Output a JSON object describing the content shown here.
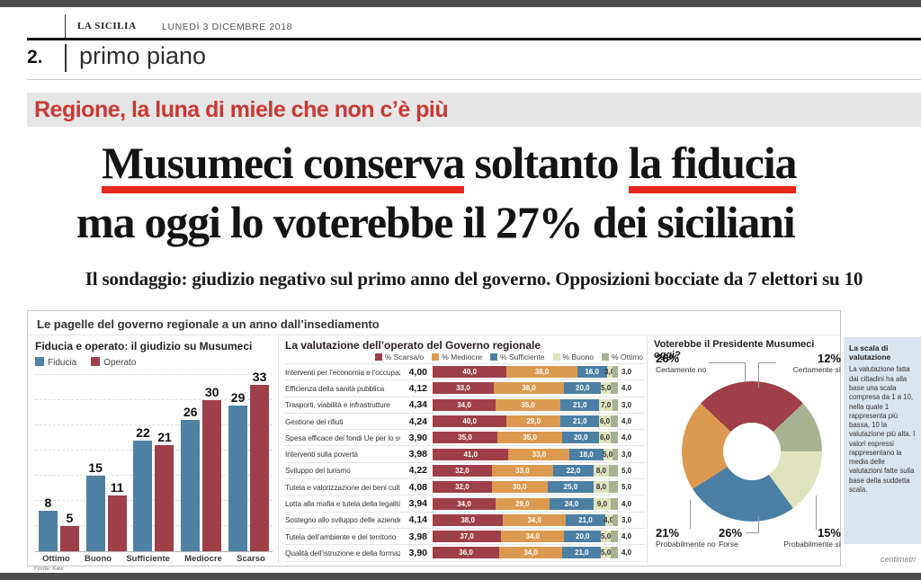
{
  "masthead": {
    "paper": "LA SICILIA",
    "date": "LUNEDÌ 3 DICEMBRE 2018",
    "page_number": "2.",
    "section": "primo piano"
  },
  "kicker": "Regione, la luna di miele che non c’è più",
  "headline": {
    "underline1": "Musumeci conserva",
    "middle": " soltanto ",
    "underline2": "la fiducia",
    "line2": "ma oggi lo voterebbe il 27% dei siciliani"
  },
  "subhead": "Il sondaggio: giudizio negativo sul primo anno del governo. Opposizioni bocciate da 7 elettori su 10",
  "infographic": {
    "box_title": "Le pagelle del governo regionale a un anno dall’insediamento",
    "source": "Fonte: Keix",
    "credit": "centimetri",
    "scale_note": {
      "title": "La scala di valutazione",
      "body": "La valutazione fatta dai cittadini ha alla base una scala compresa da 1 a 10, nella quale 1 rappresenta più bassa, 10 la valutazione più alta. I valori espressi rappresentano la media delle valutazioni fatte sulla base della suddetta scala."
    }
  },
  "colors": {
    "underline_red": "#e8261d",
    "kicker_red": "#c93834",
    "band_gray": "#e6e6e6",
    "note_blue": "#d9e5ef",
    "fiducia_blue": "#4f81a3",
    "operato_red": "#9e3f49"
  },
  "chart_data": [
    {
      "type": "bar",
      "title": "Fiducia e operato: il giudizio su Musumeci",
      "categories": [
        "Ottimo",
        "Buono",
        "Sufficiente",
        "Mediocre",
        "Scarso"
      ],
      "series": [
        {
          "name": "Fiducia",
          "color": "#4f81a3",
          "values": [
            8,
            15,
            22,
            26,
            29
          ]
        },
        {
          "name": "Operato",
          "color": "#9e3f49",
          "values": [
            5,
            11,
            21,
            30,
            33
          ]
        }
      ],
      "ylim": [
        0,
        35
      ],
      "grid": "dashed-horizontal",
      "legend_position": "top-left"
    },
    {
      "type": "bar",
      "subtype": "horizontal-stacked-100pct",
      "title": "La valutazione dell’operato del Governo regionale",
      "legend": [
        "% Scarsa/o",
        "% Mediocre",
        "% Sufficiente",
        "% Buono",
        "% Ottimo"
      ],
      "colors": [
        "#9e3f49",
        "#dc9a50",
        "#4b7fa3",
        "#dfe3bd",
        "#a7b291"
      ],
      "rows": [
        {
          "label": "Interventi per l’economia e l’occupazione",
          "mean": "4,00",
          "values": [
            40,
            38,
            16,
            3,
            3
          ]
        },
        {
          "label": "Efficienza della sanità pubblica",
          "mean": "4,12",
          "values": [
            33,
            38,
            20,
            5,
            4
          ]
        },
        {
          "label": "Trasporti, viabilità e infrastrutture",
          "mean": "4,34",
          "values": [
            34,
            35,
            21,
            7,
            3
          ]
        },
        {
          "label": "Gestione dei rifiuti",
          "mean": "4,24",
          "values": [
            40,
            29,
            21,
            6,
            4
          ]
        },
        {
          "label": "Spesa efficace dei fondi Ue per lo sviluppo",
          "mean": "3,90",
          "values": [
            35,
            35,
            20,
            6,
            4
          ]
        },
        {
          "label": "Interventi sulla povertà",
          "mean": "3,98",
          "values": [
            41,
            33,
            18,
            5,
            3
          ]
        },
        {
          "label": "Sviluppo del turismo",
          "mean": "4,22",
          "values": [
            32,
            33,
            22,
            8,
            5
          ]
        },
        {
          "label": "Tutela e valorizzazione dei beni culturali",
          "mean": "4,08",
          "values": [
            32,
            30,
            25,
            8,
            5
          ]
        },
        {
          "label": "Lotta alla mafia e tutela della legalità",
          "mean": "3,94",
          "values": [
            34,
            29,
            24,
            9,
            4
          ]
        },
        {
          "label": "Sostegno allo sviluppo delle aziende",
          "mean": "4,14",
          "values": [
            38,
            34,
            21,
            4,
            3
          ]
        },
        {
          "label": "Tutela dell’ambiente e del territorio",
          "mean": "3,98",
          "values": [
            37,
            34,
            20,
            5,
            4
          ]
        },
        {
          "label": "Qualità dell’istruzione e della formazione",
          "mean": "3,90",
          "values": [
            36,
            34,
            21,
            5,
            4
          ]
        }
      ]
    },
    {
      "type": "pie",
      "subtype": "donut",
      "title": "Voterebbe il Presidente Musumeci oggi?",
      "slices": [
        {
          "label": "Certamente no",
          "pct": 26,
          "pct_label": "26%",
          "color": "#9e3f49"
        },
        {
          "label": "Certamente sì",
          "pct": 12,
          "pct_label": "12%",
          "color": "#a7b291"
        },
        {
          "label": "Probabilmente sì",
          "pct": 15,
          "pct_label": "15%",
          "color": "#dfe3bd"
        },
        {
          "label": "Forse",
          "pct": 26,
          "pct_label": "26%",
          "color": "#4b7fa3"
        },
        {
          "label": "Probabilmente no",
          "pct": 21,
          "pct_label": "21%",
          "color": "#dc9a50"
        }
      ]
    }
  ]
}
